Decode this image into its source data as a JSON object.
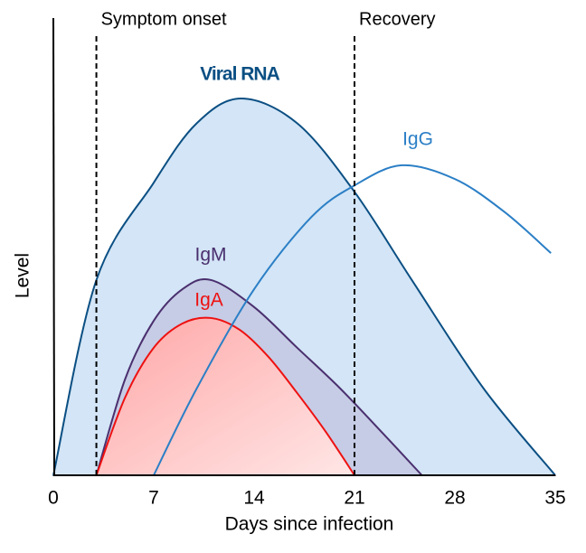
{
  "chart_data": {
    "type": "area",
    "xlabel": "Days since infection",
    "ylabel": "Level",
    "xlim": [
      0,
      35
    ],
    "xticks": [
      0,
      7,
      14,
      21,
      28,
      35
    ],
    "ylim": [
      0,
      100
    ],
    "annotations": [
      {
        "text": "Symptom onset",
        "x": 3
      },
      {
        "text": "Recovery",
        "x": 21
      }
    ],
    "series": [
      {
        "name": "Viral RNA",
        "color": "#0b4f83",
        "fill": "#d3e5f6",
        "x": [
          0,
          3,
          7,
          10,
          13.1,
          17,
          21,
          25,
          30,
          35
        ],
        "values": [
          0,
          42.7,
          64,
          77,
          82.4,
          77,
          62,
          42.7,
          19,
          0
        ]
      },
      {
        "name": "IgM",
        "color": "#4a2f6e",
        "fill": "#c3c8e2",
        "x": [
          3,
          5,
          7,
          9,
          11,
          14,
          17,
          20,
          23,
          25.7
        ],
        "values": [
          0,
          21,
          33.8,
          40.7,
          42.7,
          36.8,
          27.9,
          19,
          9.1,
          0
        ]
      },
      {
        "name": "IgA",
        "color": "#ee1111",
        "fill": "#ffb3b3",
        "x": [
          3,
          5,
          7,
          9,
          11,
          13,
          15,
          17,
          19,
          21
        ],
        "values": [
          0,
          17,
          27.9,
          33.2,
          34.4,
          31.8,
          25.9,
          18,
          9.5,
          0
        ]
      },
      {
        "name": "IgG",
        "color": "#2b7fc6",
        "x": [
          7,
          10,
          14,
          18,
          21,
          24.3,
          28,
          31.5,
          34.7
        ],
        "values": [
          0,
          19,
          40.7,
          56.5,
          63.4,
          67.8,
          64.8,
          57.5,
          48.6
        ]
      }
    ]
  }
}
